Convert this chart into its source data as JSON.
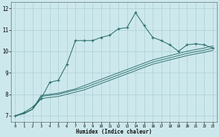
{
  "xlabel": "Humidex (Indice chaleur)",
  "bg_color": "#cce8ec",
  "grid_color": "#aacdd4",
  "line_color": "#2d6e6e",
  "xlim": [
    -0.5,
    23.5
  ],
  "ylim": [
    6.7,
    12.3
  ],
  "xticks": [
    0,
    1,
    2,
    3,
    4,
    5,
    6,
    7,
    8,
    9,
    10,
    11,
    12,
    13,
    14,
    15,
    16,
    17,
    18,
    19,
    20,
    21,
    22,
    23
  ],
  "yticks": [
    7,
    8,
    9,
    10,
    11,
    12
  ],
  "series1_x": [
    0,
    1,
    2,
    3,
    4,
    5,
    6,
    7,
    8,
    9,
    10,
    11,
    12,
    13,
    14,
    15,
    16,
    17,
    18,
    19,
    20,
    21,
    22,
    23
  ],
  "series1_y": [
    7.0,
    7.15,
    7.4,
    7.8,
    8.55,
    8.65,
    9.4,
    10.5,
    10.5,
    10.5,
    10.65,
    10.75,
    11.05,
    11.1,
    11.8,
    11.2,
    10.65,
    10.5,
    10.3,
    10.0,
    10.3,
    10.35,
    10.3,
    10.15
  ],
  "series2_x": [
    0,
    1,
    2,
    3,
    4,
    5,
    6,
    7,
    8,
    9,
    10,
    11,
    12,
    13,
    14,
    15,
    16,
    17,
    18,
    19,
    20,
    21,
    22,
    23
  ],
  "series2_y": [
    7.0,
    7.1,
    7.3,
    7.8,
    7.85,
    7.9,
    8.0,
    8.1,
    8.2,
    8.35,
    8.5,
    8.65,
    8.8,
    8.95,
    9.1,
    9.25,
    9.4,
    9.5,
    9.6,
    9.7,
    9.8,
    9.88,
    9.95,
    10.05
  ],
  "series3_x": [
    0,
    1,
    2,
    3,
    4,
    5,
    6,
    7,
    8,
    9,
    10,
    11,
    12,
    13,
    14,
    15,
    16,
    17,
    18,
    19,
    20,
    21,
    22,
    23
  ],
  "series3_y": [
    7.0,
    7.1,
    7.3,
    7.9,
    7.95,
    8.0,
    8.1,
    8.2,
    8.3,
    8.45,
    8.6,
    8.75,
    8.9,
    9.05,
    9.2,
    9.35,
    9.5,
    9.6,
    9.7,
    9.8,
    9.9,
    9.98,
    10.05,
    10.15
  ],
  "series4_x": [
    0,
    1,
    2,
    3,
    4,
    5,
    6,
    7,
    8,
    9,
    10,
    11,
    12,
    13,
    14,
    15,
    16,
    17,
    18,
    19,
    20,
    21,
    22,
    23
  ],
  "series4_y": [
    7.0,
    7.1,
    7.3,
    7.95,
    8.0,
    8.05,
    8.15,
    8.25,
    8.4,
    8.55,
    8.7,
    8.85,
    9.0,
    9.15,
    9.3,
    9.45,
    9.6,
    9.7,
    9.8,
    9.9,
    10.0,
    10.08,
    10.15,
    10.25
  ]
}
